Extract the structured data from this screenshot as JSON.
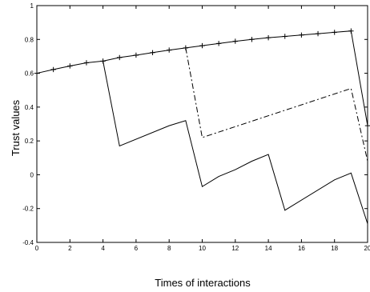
{
  "chart_data": {
    "type": "line",
    "xlabel": "Times of interactions",
    "ylabel": "Trust values",
    "xlim": [
      0,
      20
    ],
    "ylim": [
      -0.4,
      1
    ],
    "x_ticks": [
      0,
      2,
      4,
      6,
      8,
      10,
      12,
      14,
      16,
      18,
      20
    ],
    "y_ticks": [
      -0.4,
      -0.2,
      0,
      0.2,
      0.4,
      0.6,
      0.8,
      1
    ],
    "x_tick_labels": [
      "0",
      "2",
      "4",
      "6",
      "8",
      "10",
      "12",
      "14",
      "16",
      "18",
      "20"
    ],
    "y_tick_labels": [
      "-0.4",
      "-0.2",
      "0",
      "0.2",
      "0.4",
      "0.6",
      "0.8",
      "1"
    ],
    "grid": false,
    "series": [
      {
        "style": "solid-plus",
        "x": [
          0,
          1,
          2,
          3,
          4,
          5,
          6,
          7,
          8,
          9,
          10,
          11,
          12,
          13,
          14,
          15,
          16,
          17,
          18,
          19,
          20
        ],
        "values": [
          0.6,
          0.622,
          0.643,
          0.662,
          0.672,
          0.693,
          0.707,
          0.722,
          0.737,
          0.75,
          0.763,
          0.776,
          0.789,
          0.8,
          0.81,
          0.818,
          0.826,
          0.834,
          0.842,
          0.85,
          0.29
        ]
      },
      {
        "style": "dashdot",
        "x": [
          9,
          10,
          19,
          20
        ],
        "values": [
          0.75,
          0.22,
          0.51,
          0.08
        ]
      },
      {
        "style": "solid",
        "x": [
          4,
          5,
          8,
          9,
          10,
          11,
          12,
          13,
          14,
          15,
          18,
          19,
          20
        ],
        "values": [
          0.672,
          0.17,
          0.29,
          0.32,
          -0.07,
          -0.01,
          0.03,
          0.08,
          0.12,
          -0.21,
          -0.03,
          0.01,
          -0.29
        ]
      }
    ]
  }
}
